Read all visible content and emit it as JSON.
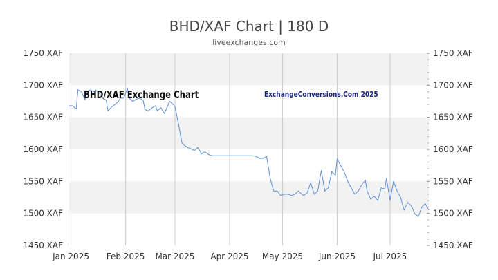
{
  "header": {
    "title": "BHD/XAF Chart | 180 D",
    "subtitle": "liveexchanges.com"
  },
  "watermarks": {
    "left": "BHD/XAF Exchange Chart",
    "right": "ExchangeConversions.Com 2025"
  },
  "colors": {
    "line": "#5b8fd6",
    "band": "#f2f2f2",
    "grid": "#cccccc",
    "axis_text": "#333333",
    "watermark_right": "#1a237e"
  },
  "chart_data": {
    "type": "line",
    "title": "BHD/XAF Chart | 180 D",
    "xlabel": "",
    "ylabel": "",
    "ylim": [
      1450,
      1750
    ],
    "y_ticks": [
      1450,
      1500,
      1550,
      1600,
      1650,
      1700,
      1750
    ],
    "y_tick_labels": [
      "1450 XAF",
      "1500 XAF",
      "1550 XAF",
      "1600 XAF",
      "1650 XAF",
      "1700 XAF",
      "1750 XAF"
    ],
    "x_range": [
      "2024-12-31",
      "2025-07-23"
    ],
    "x_ticks": [
      "2025-01-01",
      "2025-02-01",
      "2025-03-01",
      "2025-04-01",
      "2025-05-01",
      "2025-06-01",
      "2025-07-01"
    ],
    "x_tick_labels": [
      "Jan 2025",
      "Feb 2025",
      "Mar 2025",
      "Apr 2025",
      "May 2025",
      "Jun 2025",
      "Jul 2025"
    ],
    "grid": true,
    "legend": "none",
    "series": [
      {
        "x": [
          "2024-12-31",
          "2025-01-02",
          "2025-01-04",
          "2025-01-05",
          "2025-01-07",
          "2025-01-09",
          "2025-01-10",
          "2025-01-12",
          "2025-01-14",
          "2025-01-15",
          "2025-01-17",
          "2025-01-19",
          "2025-01-21",
          "2025-01-22",
          "2025-01-24",
          "2025-01-26",
          "2025-01-28",
          "2025-01-29",
          "2025-01-31",
          "2025-02-02",
          "2025-02-03",
          "2025-02-05",
          "2025-02-07",
          "2025-02-09",
          "2025-02-11",
          "2025-02-12",
          "2025-02-14",
          "2025-02-16",
          "2025-02-18",
          "2025-02-19",
          "2025-02-21",
          "2025-02-23",
          "2025-02-24",
          "2025-02-26",
          "2025-02-28",
          "2025-03-01",
          "2025-03-03",
          "2025-03-05",
          "2025-03-06",
          "2025-03-08",
          "2025-03-10",
          "2025-03-12",
          "2025-03-14",
          "2025-03-16",
          "2025-03-18",
          "2025-03-20",
          "2025-03-22",
          "2025-03-24",
          "2025-03-25",
          "2025-03-27",
          "2025-03-30",
          "2025-04-02",
          "2025-04-05",
          "2025-04-08",
          "2025-04-10",
          "2025-04-12",
          "2025-04-14",
          "2025-04-16",
          "2025-04-18",
          "2025-04-20",
          "2025-04-22",
          "2025-04-24",
          "2025-04-26",
          "2025-04-28",
          "2025-04-30",
          "2025-05-02",
          "2025-05-04",
          "2025-05-06",
          "2025-05-08",
          "2025-05-10",
          "2025-05-12",
          "2025-05-13",
          "2025-05-15",
          "2025-05-17",
          "2025-05-19",
          "2025-05-21",
          "2025-05-23",
          "2025-05-25",
          "2025-05-27",
          "2025-05-29",
          "2025-05-31",
          "2025-06-01",
          "2025-06-03",
          "2025-06-05",
          "2025-06-07",
          "2025-06-09",
          "2025-06-11",
          "2025-06-13",
          "2025-06-15",
          "2025-06-17",
          "2025-06-18",
          "2025-06-20",
          "2025-06-22",
          "2025-06-24",
          "2025-06-26",
          "2025-06-28",
          "2025-06-29",
          "2025-07-01",
          "2025-07-03",
          "2025-07-05",
          "2025-07-07",
          "2025-07-09",
          "2025-07-11",
          "2025-07-13",
          "2025-07-15",
          "2025-07-17",
          "2025-07-19",
          "2025-07-21",
          "2025-07-23"
        ],
        "y": [
          1668,
          1668,
          1663,
          1693,
          1690,
          1677,
          1690,
          1693,
          1690,
          1693,
          1688,
          1680,
          1677,
          1660,
          1666,
          1670,
          1675,
          1680,
          1680,
          1695,
          1680,
          1675,
          1678,
          1680,
          1676,
          1662,
          1660,
          1665,
          1668,
          1660,
          1665,
          1656,
          1662,
          1675,
          1670,
          1667,
          1640,
          1610,
          1607,
          1603,
          1601,
          1598,
          1603,
          1593,
          1596,
          1592,
          1590,
          1590,
          1590,
          1590,
          1590,
          1590,
          1590,
          1590,
          1590,
          1590,
          1590,
          1589,
          1586,
          1586,
          1589,
          1555,
          1535,
          1535,
          1528,
          1530,
          1530,
          1528,
          1530,
          1535,
          1530,
          1528,
          1532,
          1548,
          1530,
          1535,
          1567,
          1535,
          1540,
          1565,
          1560,
          1585,
          1575,
          1565,
          1550,
          1540,
          1530,
          1535,
          1545,
          1552,
          1535,
          1522,
          1527,
          1520,
          1540,
          1538,
          1555,
          1520,
          1550,
          1535,
          1525,
          1505,
          1517,
          1512,
          1500,
          1495,
          1510,
          1515,
          1505
        ]
      }
    ]
  }
}
